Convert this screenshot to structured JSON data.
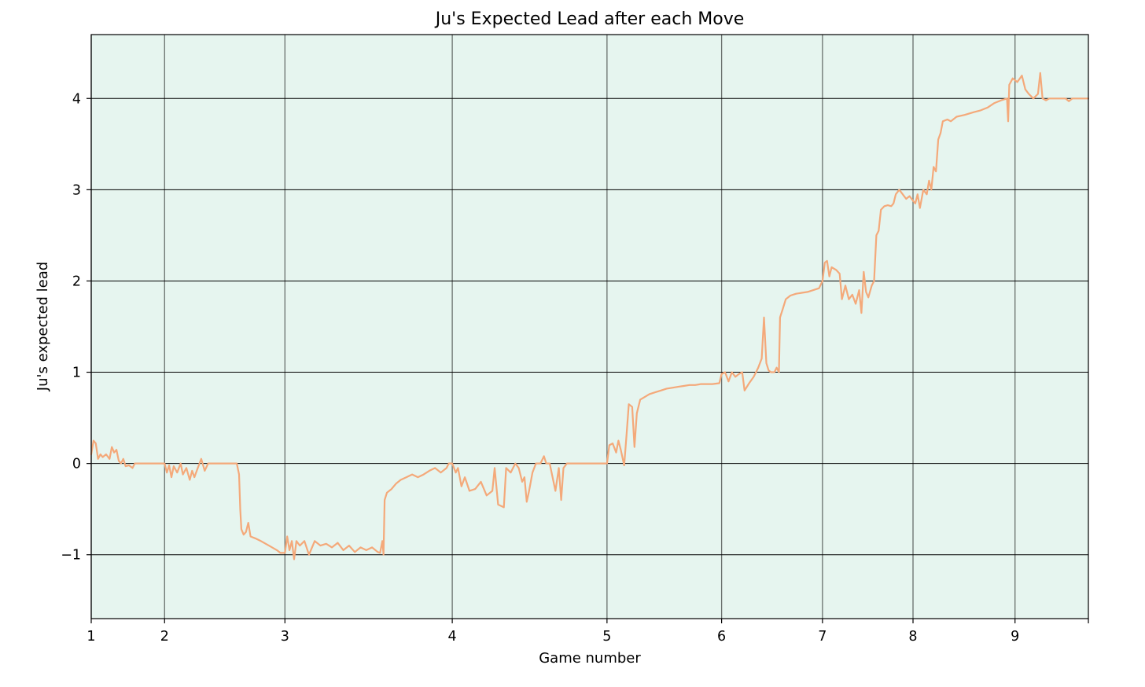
{
  "chart_data": {
    "type": "line",
    "title": "Ju's Expected Lead after each Move",
    "xlabel": "Game number",
    "ylabel": "Ju's expected lead",
    "xlim": [
      1,
      9.7
    ],
    "ylim": [
      -1.7,
      4.7
    ],
    "x_ticks": [
      {
        "label": "1",
        "value": 1.0
      },
      {
        "label": "2",
        "value": 1.64
      },
      {
        "label": "3",
        "value": 2.69
      },
      {
        "label": "4",
        "value": 4.15
      },
      {
        "label": "5",
        "value": 5.5
      },
      {
        "label": "6",
        "value": 6.5
      },
      {
        "label": "7",
        "value": 7.38
      },
      {
        "label": "8",
        "value": 8.17
      },
      {
        "label": "9",
        "value": 9.06
      }
    ],
    "y_ticks": [
      -1,
      0,
      1,
      2,
      3,
      4
    ],
    "grid": true,
    "background_color": "#e6f5ef",
    "line_color": "#f4a97a",
    "grid_color": "#000000",
    "series": [
      {
        "name": "",
        "points": [
          [
            1.0,
            0.1
          ],
          [
            1.02,
            0.25
          ],
          [
            1.04,
            0.22
          ],
          [
            1.06,
            0.05
          ],
          [
            1.08,
            0.1
          ],
          [
            1.1,
            0.07
          ],
          [
            1.13,
            0.1
          ],
          [
            1.16,
            0.05
          ],
          [
            1.18,
            0.18
          ],
          [
            1.2,
            0.12
          ],
          [
            1.22,
            0.15
          ],
          [
            1.24,
            0.03
          ],
          [
            1.26,
            0.0
          ],
          [
            1.28,
            0.05
          ],
          [
            1.3,
            -0.03
          ],
          [
            1.33,
            -0.02
          ],
          [
            1.36,
            -0.05
          ],
          [
            1.38,
            0.0
          ],
          [
            1.4,
            0.0
          ],
          [
            1.5,
            0.0
          ],
          [
            1.64,
            0.0
          ],
          [
            1.66,
            -0.1
          ],
          [
            1.68,
            -0.02
          ],
          [
            1.7,
            -0.15
          ],
          [
            1.72,
            -0.03
          ],
          [
            1.75,
            -0.1
          ],
          [
            1.78,
            0.0
          ],
          [
            1.8,
            -0.12
          ],
          [
            1.83,
            -0.05
          ],
          [
            1.86,
            -0.18
          ],
          [
            1.88,
            -0.08
          ],
          [
            1.9,
            -0.15
          ],
          [
            1.93,
            -0.05
          ],
          [
            1.96,
            0.05
          ],
          [
            1.99,
            -0.08
          ],
          [
            2.02,
            0.0
          ],
          [
            2.1,
            0.0
          ],
          [
            2.2,
            0.0
          ],
          [
            2.27,
            0.0
          ],
          [
            2.29,
            -0.12
          ],
          [
            2.3,
            -0.5
          ],
          [
            2.31,
            -0.72
          ],
          [
            2.33,
            -0.78
          ],
          [
            2.35,
            -0.75
          ],
          [
            2.37,
            -0.65
          ],
          [
            2.39,
            -0.8
          ],
          [
            2.43,
            -0.82
          ],
          [
            2.48,
            -0.85
          ],
          [
            2.55,
            -0.9
          ],
          [
            2.62,
            -0.95
          ],
          [
            2.65,
            -0.98
          ],
          [
            2.69,
            -0.98
          ],
          [
            2.71,
            -0.8
          ],
          [
            2.73,
            -0.95
          ],
          [
            2.75,
            -0.85
          ],
          [
            2.77,
            -1.05
          ],
          [
            2.79,
            -0.85
          ],
          [
            2.82,
            -0.9
          ],
          [
            2.86,
            -0.85
          ],
          [
            2.9,
            -1.0
          ],
          [
            2.95,
            -0.85
          ],
          [
            3.0,
            -0.9
          ],
          [
            3.05,
            -0.88
          ],
          [
            3.1,
            -0.92
          ],
          [
            3.15,
            -0.87
          ],
          [
            3.2,
            -0.95
          ],
          [
            3.25,
            -0.9
          ],
          [
            3.3,
            -0.97
          ],
          [
            3.35,
            -0.92
          ],
          [
            3.4,
            -0.95
          ],
          [
            3.45,
            -0.92
          ],
          [
            3.5,
            -0.97
          ],
          [
            3.52,
            -0.98
          ],
          [
            3.54,
            -0.85
          ],
          [
            3.55,
            -1.0
          ],
          [
            3.56,
            -0.4
          ],
          [
            3.58,
            -0.32
          ],
          [
            3.62,
            -0.28
          ],
          [
            3.66,
            -0.22
          ],
          [
            3.7,
            -0.18
          ],
          [
            3.75,
            -0.15
          ],
          [
            3.8,
            -0.12
          ],
          [
            3.85,
            -0.15
          ],
          [
            3.9,
            -0.12
          ],
          [
            3.95,
            -0.08
          ],
          [
            4.0,
            -0.05
          ],
          [
            4.05,
            -0.1
          ],
          [
            4.1,
            -0.05
          ],
          [
            4.12,
            0.0
          ],
          [
            4.15,
            0.0
          ],
          [
            4.18,
            -0.1
          ],
          [
            4.2,
            -0.05
          ],
          [
            4.23,
            -0.25
          ],
          [
            4.26,
            -0.15
          ],
          [
            4.3,
            -0.3
          ],
          [
            4.35,
            -0.28
          ],
          [
            4.4,
            -0.2
          ],
          [
            4.45,
            -0.35
          ],
          [
            4.5,
            -0.3
          ],
          [
            4.52,
            -0.05
          ],
          [
            4.55,
            -0.45
          ],
          [
            4.6,
            -0.48
          ],
          [
            4.62,
            -0.05
          ],
          [
            4.66,
            -0.1
          ],
          [
            4.7,
            0.0
          ],
          [
            4.73,
            -0.05
          ],
          [
            4.76,
            -0.2
          ],
          [
            4.78,
            -0.15
          ],
          [
            4.8,
            -0.42
          ],
          [
            4.82,
            -0.3
          ],
          [
            4.85,
            -0.1
          ],
          [
            4.88,
            0.0
          ],
          [
            4.92,
            0.0
          ],
          [
            4.95,
            0.08
          ],
          [
            4.97,
            0.0
          ],
          [
            5.0,
            0.0
          ],
          [
            5.05,
            -0.3
          ],
          [
            5.08,
            -0.05
          ],
          [
            5.1,
            -0.4
          ],
          [
            5.12,
            -0.05
          ],
          [
            5.15,
            0.0
          ],
          [
            5.2,
            0.0
          ],
          [
            5.3,
            0.0
          ],
          [
            5.4,
            0.0
          ],
          [
            5.5,
            0.0
          ],
          [
            5.52,
            0.2
          ],
          [
            5.55,
            0.22
          ],
          [
            5.58,
            0.12
          ],
          [
            5.6,
            0.25
          ],
          [
            5.62,
            0.15
          ],
          [
            5.65,
            -0.02
          ],
          [
            5.67,
            0.3
          ],
          [
            5.69,
            0.65
          ],
          [
            5.72,
            0.62
          ],
          [
            5.74,
            0.18
          ],
          [
            5.76,
            0.55
          ],
          [
            5.79,
            0.7
          ],
          [
            5.83,
            0.73
          ],
          [
            5.87,
            0.76
          ],
          [
            5.92,
            0.78
          ],
          [
            5.97,
            0.8
          ],
          [
            6.02,
            0.82
          ],
          [
            6.07,
            0.83
          ],
          [
            6.12,
            0.84
          ],
          [
            6.17,
            0.85
          ],
          [
            6.22,
            0.86
          ],
          [
            6.27,
            0.86
          ],
          [
            6.32,
            0.87
          ],
          [
            6.37,
            0.87
          ],
          [
            6.42,
            0.87
          ],
          [
            6.48,
            0.88
          ],
          [
            6.5,
            0.98
          ],
          [
            6.53,
            1.0
          ],
          [
            6.56,
            0.9
          ],
          [
            6.59,
            1.0
          ],
          [
            6.62,
            0.95
          ],
          [
            6.65,
            0.98
          ],
          [
            6.68,
            1.0
          ],
          [
            6.7,
            0.8
          ],
          [
            6.74,
            0.88
          ],
          [
            6.78,
            0.95
          ],
          [
            6.82,
            1.05
          ],
          [
            6.85,
            1.15
          ],
          [
            6.87,
            1.6
          ],
          [
            6.89,
            1.1
          ],
          [
            6.91,
            1.02
          ],
          [
            6.93,
            1.0
          ],
          [
            6.96,
            1.0
          ],
          [
            6.98,
            1.05
          ],
          [
            7.0,
            1.0
          ],
          [
            7.01,
            1.6
          ],
          [
            7.03,
            1.68
          ],
          [
            7.06,
            1.8
          ],
          [
            7.1,
            1.84
          ],
          [
            7.15,
            1.86
          ],
          [
            7.2,
            1.87
          ],
          [
            7.25,
            1.88
          ],
          [
            7.3,
            1.9
          ],
          [
            7.35,
            1.92
          ],
          [
            7.38,
            2.0
          ],
          [
            7.4,
            2.2
          ],
          [
            7.42,
            2.22
          ],
          [
            7.44,
            2.05
          ],
          [
            7.46,
            2.15
          ],
          [
            7.5,
            2.12
          ],
          [
            7.53,
            2.08
          ],
          [
            7.55,
            1.8
          ],
          [
            7.58,
            1.95
          ],
          [
            7.61,
            1.8
          ],
          [
            7.64,
            1.85
          ],
          [
            7.67,
            1.75
          ],
          [
            7.7,
            1.9
          ],
          [
            7.72,
            1.65
          ],
          [
            7.74,
            2.1
          ],
          [
            7.76,
            1.88
          ],
          [
            7.78,
            1.82
          ],
          [
            7.81,
            1.95
          ],
          [
            7.83,
            2.0
          ],
          [
            7.85,
            2.5
          ],
          [
            7.87,
            2.55
          ],
          [
            7.89,
            2.78
          ],
          [
            7.92,
            2.82
          ],
          [
            7.95,
            2.83
          ],
          [
            7.98,
            2.82
          ],
          [
            8.0,
            2.85
          ],
          [
            8.02,
            2.95
          ],
          [
            8.05,
            3.0
          ],
          [
            8.08,
            2.95
          ],
          [
            8.11,
            2.9
          ],
          [
            8.14,
            2.93
          ],
          [
            8.17,
            2.88
          ],
          [
            8.19,
            2.85
          ],
          [
            8.21,
            2.95
          ],
          [
            8.23,
            2.8
          ],
          [
            8.26,
            3.0
          ],
          [
            8.29,
            2.95
          ],
          [
            8.31,
            3.1
          ],
          [
            8.33,
            3.0
          ],
          [
            8.35,
            3.25
          ],
          [
            8.37,
            3.2
          ],
          [
            8.39,
            3.55
          ],
          [
            8.41,
            3.62
          ],
          [
            8.43,
            3.75
          ],
          [
            8.47,
            3.77
          ],
          [
            8.5,
            3.75
          ],
          [
            8.55,
            3.8
          ],
          [
            8.62,
            3.82
          ],
          [
            8.7,
            3.85
          ],
          [
            8.76,
            3.87
          ],
          [
            8.82,
            3.9
          ],
          [
            8.88,
            3.95
          ],
          [
            8.94,
            3.98
          ],
          [
            8.99,
            4.0
          ],
          [
            9.0,
            3.75
          ],
          [
            9.01,
            4.15
          ],
          [
            9.04,
            4.22
          ],
          [
            9.08,
            4.18
          ],
          [
            9.12,
            4.25
          ],
          [
            9.15,
            4.1
          ],
          [
            9.18,
            4.05
          ],
          [
            9.22,
            4.0
          ],
          [
            9.26,
            4.05
          ],
          [
            9.28,
            4.28
          ],
          [
            9.3,
            4.0
          ],
          [
            9.33,
            3.98
          ],
          [
            9.36,
            4.0
          ],
          [
            9.42,
            4.0
          ],
          [
            9.5,
            4.0
          ],
          [
            9.53,
            3.97
          ],
          [
            9.56,
            4.0
          ],
          [
            9.62,
            4.0
          ],
          [
            9.7,
            4.0
          ]
        ]
      }
    ]
  }
}
